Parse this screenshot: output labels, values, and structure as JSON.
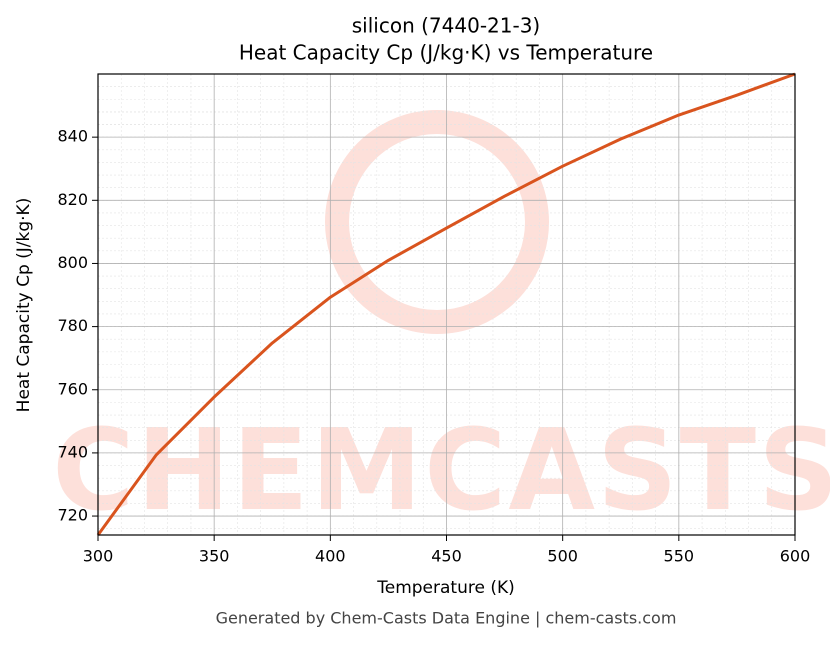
{
  "chart_data": {
    "type": "line",
    "title": "silicon (7440-21-3)",
    "subtitle": "Heat Capacity Cp (J/kg·K) vs Temperature",
    "xlabel": "Temperature (K)",
    "ylabel": "Heat Capacity Cp (J/kg·K)",
    "watermark": "CHEMCASTS",
    "footer": "Generated by Chem-Casts Data Engine | chem-casts.com",
    "x": [
      300,
      325,
      350,
      375,
      400,
      425,
      450,
      475,
      500,
      525,
      550,
      575,
      600
    ],
    "series": [
      {
        "name": "Heat Capacity Cp",
        "color": "#d9541e",
        "values": [
          714,
          739.3,
          757.7,
          774.8,
          789.3,
          801,
          811.2,
          821.3,
          830.8,
          839.4,
          847,
          853.3,
          860
        ]
      }
    ],
    "xlim": [
      300,
      600
    ],
    "xticks": [
      300,
      350,
      400,
      450,
      500,
      550,
      600
    ],
    "ylim": [
      714,
      860
    ],
    "yticks": [
      720,
      740,
      760,
      780,
      800,
      820,
      840
    ],
    "grid": true
  }
}
